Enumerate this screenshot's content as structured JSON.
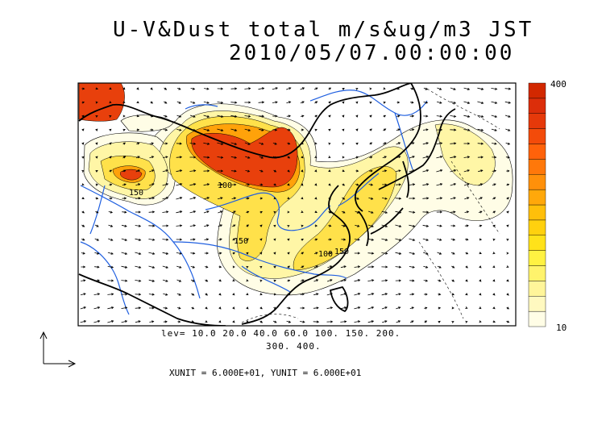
{
  "title": {
    "line1": "U-V&Dust total m/s&ug/m3 JST",
    "line2": "2010/05/07.00:00:00"
  },
  "contour_levels_text": {
    "line1": "lev= 10.0 20.0 40.0 60.0 100. 150. 200.",
    "line2": "300. 400."
  },
  "units_text": "XUNIT = 6.000E+01, YUNIT = 6.000E+01",
  "colorbar": {
    "max_label": "400",
    "min_label": "10",
    "levels": [
      10,
      20,
      40,
      60,
      100,
      150,
      200,
      300,
      400
    ],
    "colors": [
      "#fffde6",
      "#fff9c0",
      "#fff59a",
      "#fff36c",
      "#fff242",
      "#ffe21a",
      "#ffd10e",
      "#ffbf0a",
      "#ffa80a",
      "#ff900a",
      "#ff780a",
      "#ff620a",
      "#f34b0a",
      "#e6390a",
      "#dc2e0a",
      "#d22800"
    ]
  },
  "map_labels": [
    "150",
    "100",
    "150",
    "100",
    "150"
  ],
  "colors": {
    "coast": "#000000",
    "river": "#1f5fe0",
    "arrow": "#000000"
  }
}
